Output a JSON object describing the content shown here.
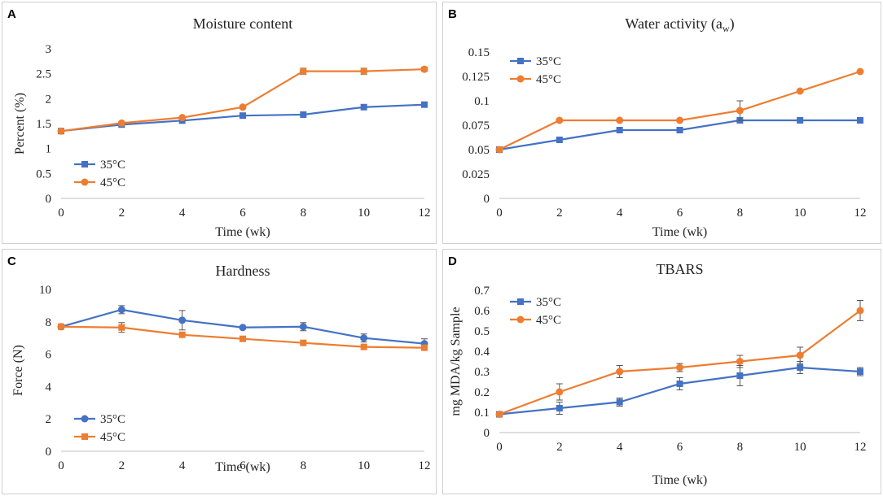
{
  "chart_data": [
    {
      "panel": "A",
      "type": "line",
      "title": "Moisture content",
      "title_sub": "",
      "xlabel": "Time (wk)",
      "ylabel": "Percent (%)",
      "x": [
        0,
        2,
        4,
        6,
        8,
        10,
        12
      ],
      "ylim": [
        0,
        3
      ],
      "yticks": [
        0,
        0.5,
        1,
        1.5,
        2,
        2.5,
        3
      ],
      "ytick_labels": [
        "0",
        "0.5",
        "1",
        "1.5",
        "2",
        "2.5",
        "3"
      ],
      "legend_position": "bottom-left",
      "series": [
        {
          "name": "35°C",
          "color": "#4472c4",
          "marker": "square",
          "values": [
            1.35,
            1.48,
            1.56,
            1.66,
            1.68,
            1.83,
            1.88
          ],
          "errors": [
            0,
            0,
            0,
            0,
            0,
            0,
            0
          ]
        },
        {
          "name": "45°C",
          "color": "#ed7d31",
          "marker": "circle",
          "values": [
            1.35,
            1.51,
            1.62,
            1.83,
            2.55,
            2.55,
            2.59
          ],
          "errors": [
            0,
            0,
            0,
            0,
            0.06,
            0.06,
            0.04
          ]
        }
      ]
    },
    {
      "panel": "B",
      "type": "line",
      "title": "Water activity  (a",
      "title_sub": "w",
      "title_end": ")",
      "xlabel": "Time (wk)",
      "ylabel": "",
      "x": [
        0,
        2,
        4,
        6,
        8,
        10,
        12
      ],
      "ylim": [
        0,
        0.15
      ],
      "yticks": [
        0,
        0.025,
        0.05,
        0.075,
        0.1,
        0.125,
        0.15
      ],
      "ytick_labels": [
        "0",
        "0.025",
        "0.05",
        "0.075",
        "0.1",
        "0.125",
        "0.15"
      ],
      "legend_position": "top-left",
      "series": [
        {
          "name": "35°C",
          "color": "#4472c4",
          "marker": "square",
          "values": [
            0.05,
            0.06,
            0.07,
            0.07,
            0.08,
            0.08,
            0.08
          ],
          "errors": [
            0,
            0,
            0,
            0,
            0,
            0,
            0
          ]
        },
        {
          "name": "45°C",
          "color": "#ed7d31",
          "marker": "circle",
          "values": [
            0.05,
            0.08,
            0.08,
            0.08,
            0.09,
            0.11,
            0.13
          ],
          "errors": [
            0,
            0,
            0,
            0,
            0.01,
            0,
            0
          ]
        }
      ]
    },
    {
      "panel": "C",
      "type": "line",
      "title": "Hardness",
      "title_sub": "",
      "xlabel": "Time (wk)",
      "ylabel": "Force (N)",
      "x": [
        0,
        2,
        4,
        6,
        8,
        10,
        12
      ],
      "ylim": [
        0,
        10
      ],
      "yticks": [
        0,
        2,
        4,
        6,
        8,
        10
      ],
      "ytick_labels": [
        "0",
        "2",
        "4",
        "6",
        "8",
        "10"
      ],
      "legend_position": "bottom-left",
      "series": [
        {
          "name": "35°C",
          "color": "#4472c4",
          "marker": "circle",
          "values": [
            7.7,
            8.75,
            8.1,
            7.65,
            7.7,
            7.0,
            6.65
          ],
          "errors": [
            0,
            0.25,
            0.6,
            0,
            0.25,
            0.25,
            0.3
          ]
        },
        {
          "name": "45°C",
          "color": "#ed7d31",
          "marker": "square",
          "values": [
            7.7,
            7.65,
            7.2,
            6.95,
            6.7,
            6.45,
            6.4
          ],
          "errors": [
            0,
            0.3,
            0,
            0,
            0,
            0,
            0
          ]
        }
      ]
    },
    {
      "panel": "D",
      "type": "line",
      "title": "TBARS",
      "title_sub": "",
      "xlabel": "Time (wk)",
      "ylabel": "mg MDA/kg Sample",
      "x": [
        0,
        2,
        4,
        6,
        8,
        10,
        12
      ],
      "ylim": [
        0,
        0.7
      ],
      "yticks": [
        0,
        0.1,
        0.2,
        0.3,
        0.4,
        0.5,
        0.6,
        0.7
      ],
      "ytick_labels": [
        "0",
        "0.1",
        "0.2",
        "0.3",
        "0.4",
        "0.5",
        "0.6",
        "0.7"
      ],
      "legend_position": "top-left",
      "series": [
        {
          "name": "35°C",
          "color": "#4472c4",
          "marker": "square",
          "values": [
            0.09,
            0.12,
            0.15,
            0.24,
            0.28,
            0.32,
            0.3
          ],
          "errors": [
            0,
            0.03,
            0.02,
            0.03,
            0.05,
            0.03,
            0.02
          ]
        },
        {
          "name": "45°C",
          "color": "#ed7d31",
          "marker": "circle",
          "values": [
            0.09,
            0.2,
            0.3,
            0.32,
            0.35,
            0.38,
            0.6
          ],
          "errors": [
            0,
            0.04,
            0.03,
            0.02,
            0.03,
            0.04,
            0.05
          ]
        }
      ]
    }
  ],
  "panels": [
    {
      "letter": "A"
    },
    {
      "letter": "B"
    },
    {
      "letter": "C"
    },
    {
      "letter": "D"
    }
  ]
}
